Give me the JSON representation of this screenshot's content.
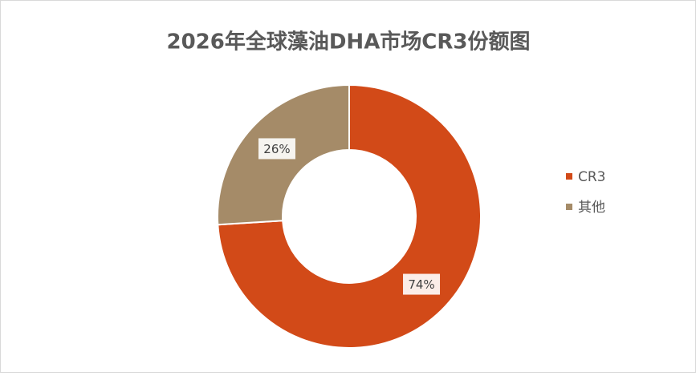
{
  "chart_data": {
    "type": "donut",
    "title": "2026年全球藻油DHA市场CR3份额图",
    "categories": [
      "CR3",
      "其他"
    ],
    "values": [
      74,
      26
    ],
    "value_labels": [
      "74%",
      "26%"
    ],
    "colors": [
      "#d24a18",
      "#a58b68"
    ],
    "legend": "right"
  }
}
